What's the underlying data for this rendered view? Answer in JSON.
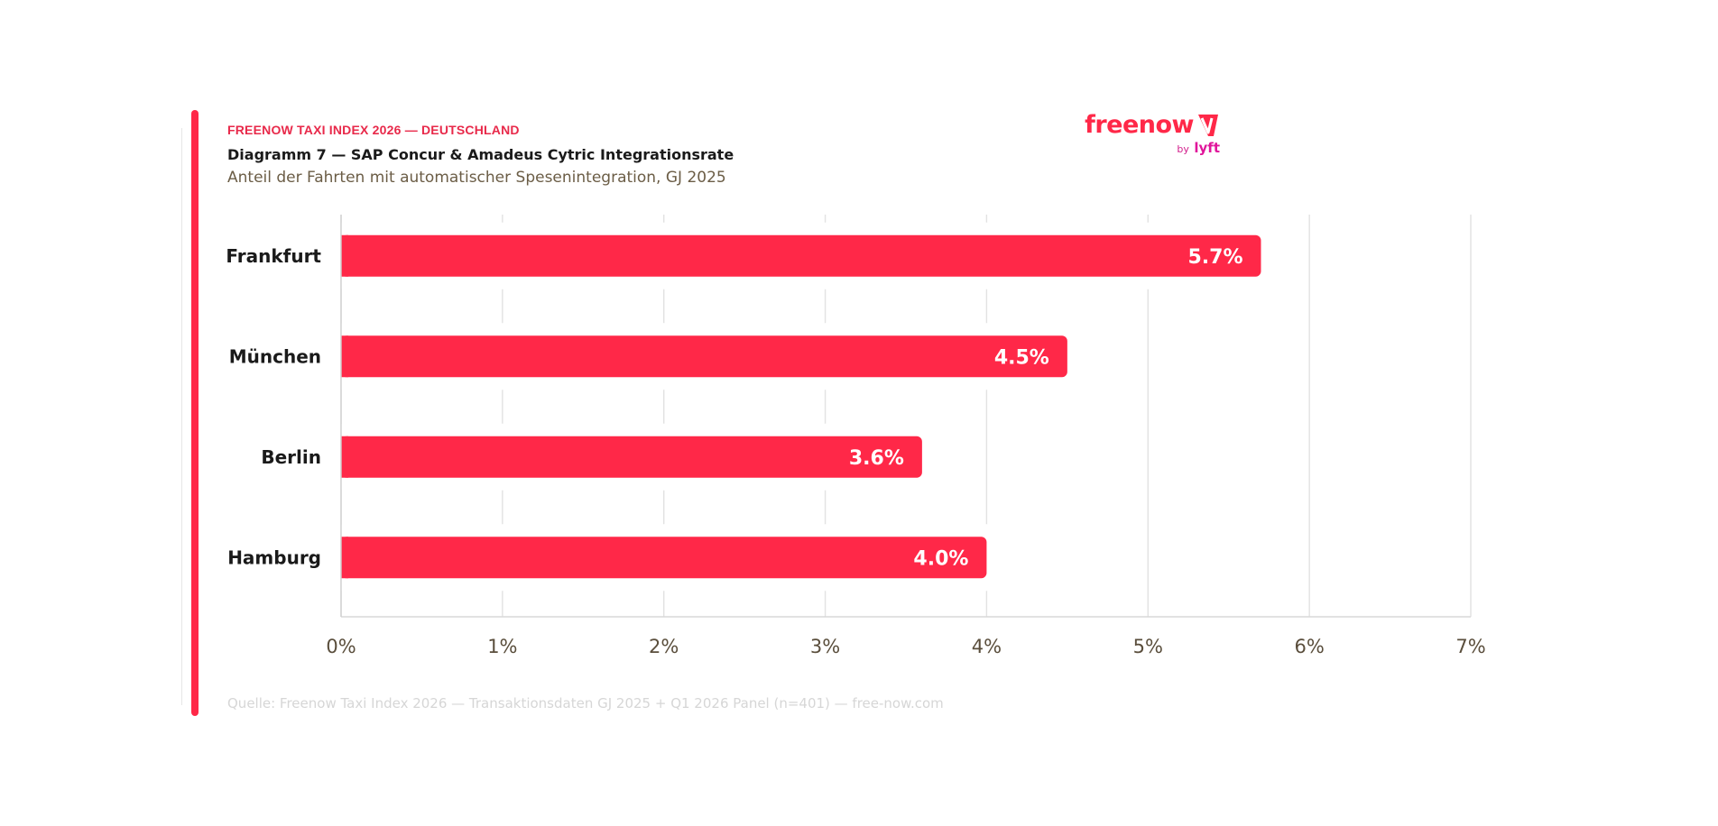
{
  "header": {
    "kicker": "FREENOW TAXI INDEX 2026 — DEUTSCHLAND",
    "title": "Diagramm 7 — SAP Concur & Amadeus Cytric Integrationsrate",
    "subtitle": "Anteil der Fahrten mit automatischer Spesenintegration, GJ 2025"
  },
  "logo": {
    "wordmark": "freenow",
    "by": "by",
    "partner": "lyft",
    "icon": "freenow-mark-icon"
  },
  "colors": {
    "accent": "#ff2848",
    "bar": "#ff2848",
    "grid": "#e2e2e2",
    "tick_text": "#5a4e3c",
    "category_text": "#1a1a1a",
    "logo_lyft": "#e0159b"
  },
  "chart_data": {
    "type": "bar",
    "orientation": "horizontal",
    "title": "Diagramm 7 — SAP Concur & Amadeus Cytric Integrationsrate",
    "subtitle": "Anteil der Fahrten mit automatischer Spesenintegration, GJ 2025",
    "categories": [
      "Frankfurt",
      "München",
      "Berlin",
      "Hamburg"
    ],
    "values": [
      5.7,
      4.5,
      3.6,
      4.0
    ],
    "value_labels": [
      "5.7%",
      "4.5%",
      "3.6%",
      "4.0%"
    ],
    "xlim": [
      0,
      7
    ],
    "x_ticks": [
      "0%",
      "1%",
      "2%",
      "3%",
      "4%",
      "5%",
      "6%",
      "7%"
    ],
    "xlabel": "",
    "ylabel": "",
    "grid": "vertical",
    "legend": "none"
  },
  "footer": {
    "source": "Quelle: Freenow Taxi Index 2026 — Transaktionsdaten GJ 2025 + Q1 2026 Panel (n=401) — free-now.com"
  }
}
